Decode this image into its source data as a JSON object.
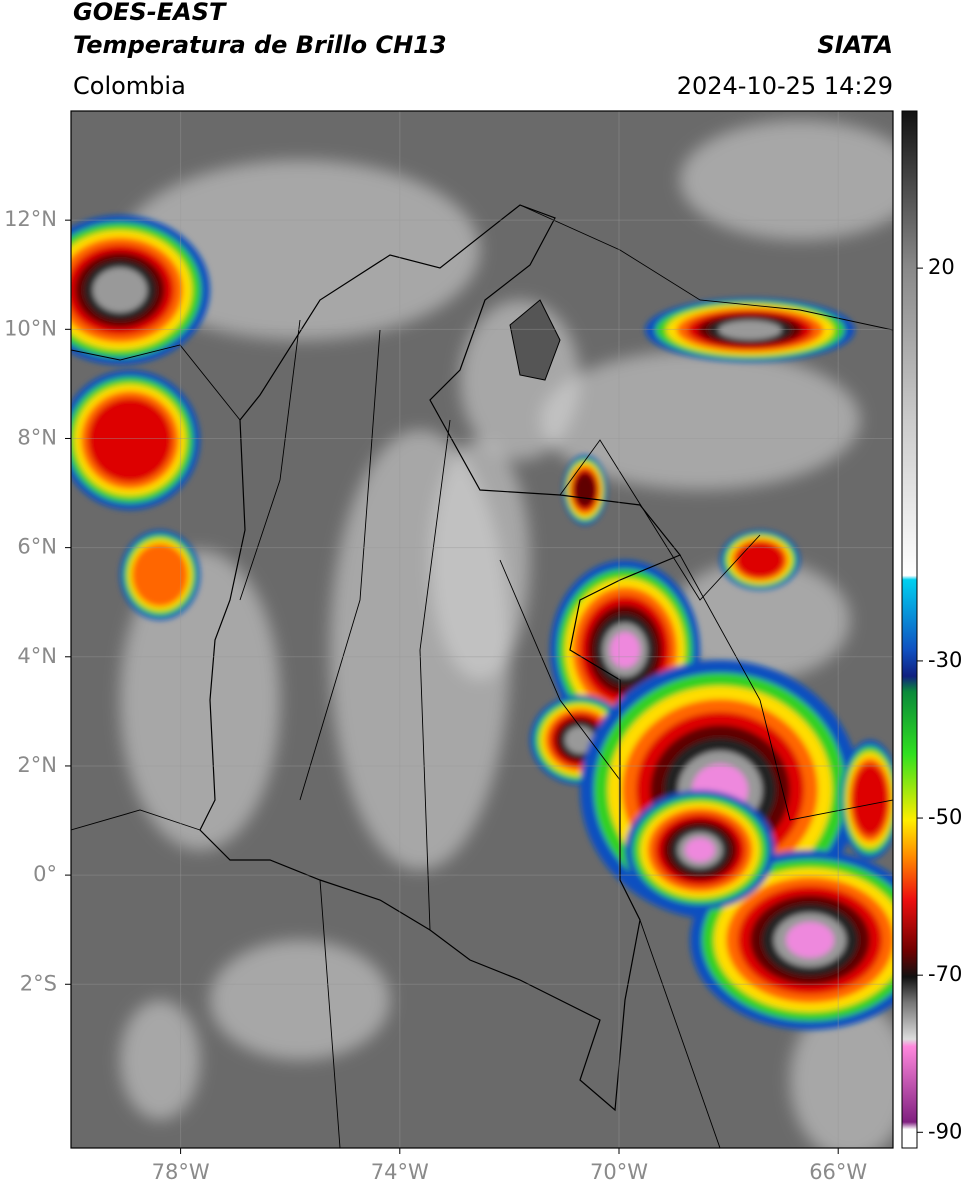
{
  "header": {
    "title": "GOES-EAST",
    "subtitle": "Temperatura de Brillo CH13",
    "source": "SIATA",
    "region": "Colombia",
    "timestamp": "2024-10-25 14:29"
  },
  "map": {
    "xlim": [
      -80,
      -65
    ],
    "ylim": [
      -5,
      14
    ],
    "grid": true,
    "xticks": [
      {
        "value": -78,
        "label": "78°W"
      },
      {
        "value": -74,
        "label": "74°W"
      },
      {
        "value": -70,
        "label": "70°W"
      },
      {
        "value": -66,
        "label": "66°W"
      }
    ],
    "yticks": [
      {
        "value": 12,
        "label": "12°N"
      },
      {
        "value": 10,
        "label": "10°N"
      },
      {
        "value": 8,
        "label": "8°N"
      },
      {
        "value": 6,
        "label": "6°N"
      },
      {
        "value": 4,
        "label": "4°N"
      },
      {
        "value": 2,
        "label": "2°N"
      },
      {
        "value": 0,
        "label": "0°"
      },
      {
        "value": -2,
        "label": "2°S"
      }
    ]
  },
  "colorbar": {
    "clim": [
      -92,
      40
    ],
    "ticks": [
      20,
      -30,
      -50,
      -70,
      -90
    ]
  }
}
